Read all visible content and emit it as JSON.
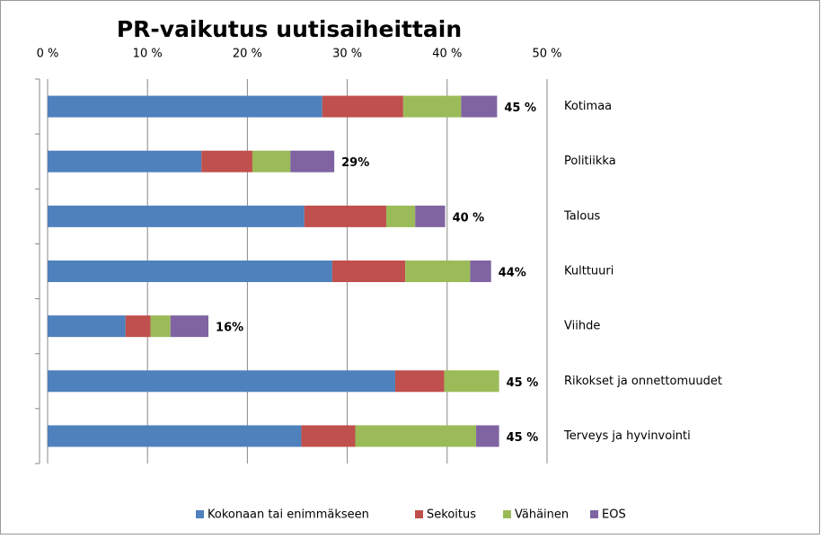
{
  "chart_data": {
    "type": "stacked_barh",
    "title": "PR-vaikutus uutisaiheittain",
    "categories": [
      "Kotimaa",
      "Politiikka",
      "Talous",
      "Kulttuuri",
      "Viihde",
      "Rikokset ja onnettomuudet",
      "Terveys ja hyvinvointi"
    ],
    "series": [
      {
        "name": "Kokonaan tai enimmäkseen",
        "color": "#4f81bd",
        "values": [
          27.5,
          15.4,
          25.7,
          28.5,
          7.8,
          34.8,
          25.4
        ]
      },
      {
        "name": "Sekoitus",
        "color": "#c0504d",
        "values": [
          8.1,
          5.1,
          8.2,
          7.3,
          2.5,
          4.9,
          5.4
        ]
      },
      {
        "name": "Vähäinen",
        "color": "#9bbb59",
        "values": [
          5.8,
          3.8,
          2.9,
          6.5,
          2.0,
          5.5,
          12.1
        ]
      },
      {
        "name": "EOS",
        "color": "#8064a2",
        "values": [
          3.6,
          4.4,
          3.0,
          2.1,
          3.8,
          0,
          2.3
        ]
      }
    ],
    "total_labels": [
      "45 %",
      "29%",
      "40 %",
      "44%",
      "16%",
      "45 %",
      "45 %"
    ],
    "xlim": [
      0,
      50
    ],
    "xticks": [
      {
        "value": 0,
        "label": "0 %"
      },
      {
        "value": 10,
        "label": "10 %"
      },
      {
        "value": 20,
        "label": "20 %"
      },
      {
        "value": 30,
        "label": "30 %"
      },
      {
        "value": 40,
        "label": "40 %"
      },
      {
        "value": 50,
        "label": "50 %"
      }
    ],
    "grid": true,
    "legend": "bottom"
  }
}
